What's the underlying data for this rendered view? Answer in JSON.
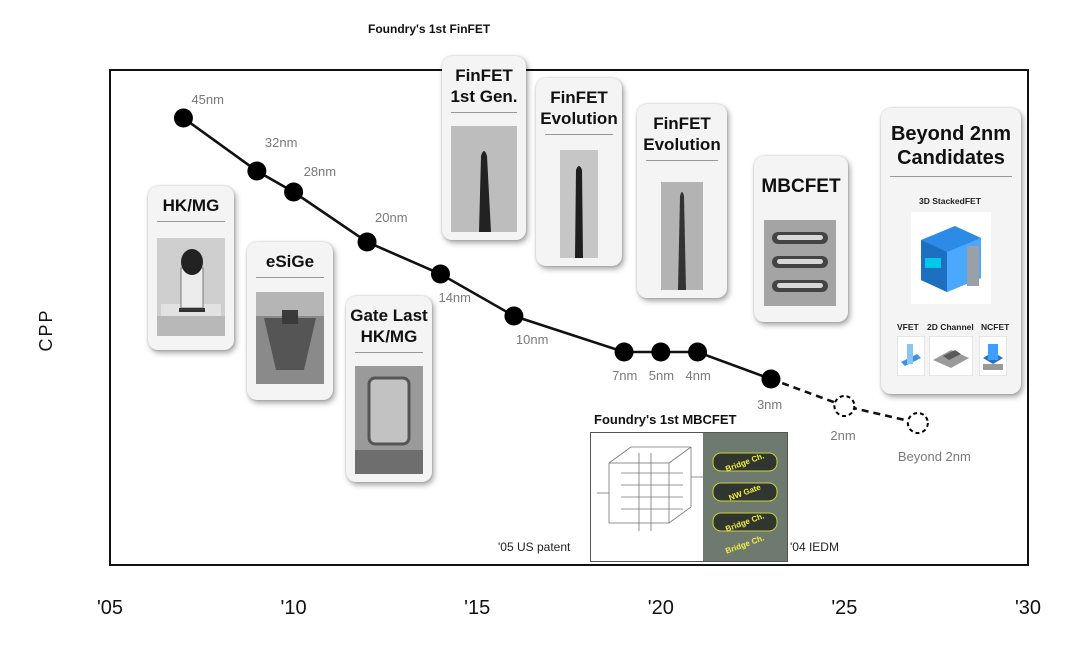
{
  "chart_data": {
    "type": "line",
    "title": "",
    "xlabel": "",
    "ylabel": "CPP",
    "xlim": [
      2005,
      2030
    ],
    "x_ticks": [
      2005,
      2010,
      2015,
      2020,
      2025,
      2030
    ],
    "x_tick_labels": [
      "'05",
      "'10",
      "'15",
      "'20",
      "'25",
      "'30"
    ],
    "y_ticks": "none",
    "grid": false,
    "series": [
      {
        "style": "solid",
        "points": [
          {
            "x": 2007,
            "label": "45nm"
          },
          {
            "x": 2009,
            "label": "32nm"
          },
          {
            "x": 2010,
            "label": "28nm"
          },
          {
            "x": 2012,
            "label": "20nm"
          },
          {
            "x": 2014,
            "label": "14nm"
          },
          {
            "x": 2016,
            "label": "10nm"
          },
          {
            "x": 2019,
            "label": "7nm"
          },
          {
            "x": 2020,
            "label": "5nm"
          },
          {
            "x": 2021,
            "label": "4nm"
          },
          {
            "x": 2023,
            "label": "3nm"
          }
        ]
      },
      {
        "style": "dashed",
        "points": [
          {
            "x": 2023,
            "label": ""
          },
          {
            "x": 2025,
            "label": "2nm"
          },
          {
            "x": 2027,
            "label": "Beyond 2nm"
          }
        ]
      }
    ],
    "annotations": {
      "top_title": "Foundry's 1st FinFET",
      "cards": [
        {
          "key": "hkmg",
          "title": "HK/MG"
        },
        {
          "key": "esige",
          "title": "eSiGe"
        },
        {
          "key": "gatelast",
          "title": "Gate Last\nHK/MG"
        },
        {
          "key": "finfet1",
          "title": "FinFET\n1st Gen."
        },
        {
          "key": "finfet2",
          "title": "FinFET\nEvolution"
        },
        {
          "key": "finfet3",
          "title": "FinFET\nEvolution"
        },
        {
          "key": "mbcfet",
          "title": "MBCFET"
        },
        {
          "key": "beyond",
          "title": "Beyond 2nm\nCandidates"
        }
      ],
      "beyond_items": {
        "stacked": "3D StackedFET",
        "vfet": "VFET",
        "channel2d": "2D Channel",
        "ncfet": "NCFET"
      },
      "mbcfet_inset": {
        "title": "Foundry's 1st MBCFET",
        "left_note": "'05 US patent",
        "right_note": "'04 IEDM",
        "tem_labels": [
          "Bridge Ch.",
          "Bridge Ch.",
          "Bridge Ch."
        ],
        "tem_gate": "NW Gate"
      }
    }
  }
}
